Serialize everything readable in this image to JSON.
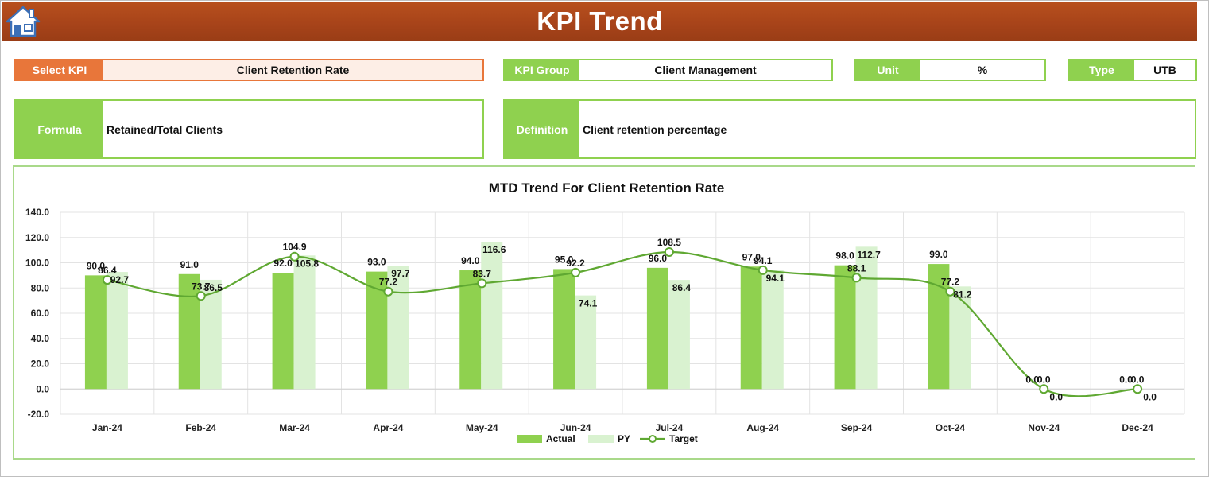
{
  "header": {
    "title": "KPI Trend",
    "home_icon": "home-icon"
  },
  "fields": {
    "select_kpi": {
      "label": "Select KPI",
      "value": "Client Retention Rate"
    },
    "kpi_group": {
      "label": "KPI Group",
      "value": "Client Management"
    },
    "unit": {
      "label": "Unit",
      "value": "%"
    },
    "type": {
      "label": "Type",
      "value": "UTB"
    },
    "formula": {
      "label": "Formula",
      "value": "Retained/Total Clients"
    },
    "definition": {
      "label": "Definition",
      "value": "Client retention percentage"
    }
  },
  "colors": {
    "header": "#a8441a",
    "accent_green": "#8fd14f",
    "select_orange": "#e8763a",
    "actual": "#8fd14f",
    "py": "#d9f2d0",
    "target": "#5fa832"
  },
  "chart_data": {
    "type": "bar",
    "title": "MTD Trend For Client Retention Rate",
    "categories": [
      "Jan-24",
      "Feb-24",
      "Mar-24",
      "Apr-24",
      "May-24",
      "Jun-24",
      "Jul-24",
      "Aug-24",
      "Sep-24",
      "Oct-24",
      "Nov-24",
      "Dec-24"
    ],
    "series": [
      {
        "name": "Actual",
        "type": "bar",
        "values": [
          90.0,
          91.0,
          92.0,
          93.0,
          94.0,
          95.0,
          96.0,
          97.0,
          98.0,
          99.0,
          0.0,
          0.0
        ]
      },
      {
        "name": "PY",
        "type": "bar",
        "values": [
          92.7,
          86.5,
          105.8,
          97.7,
          116.6,
          74.1,
          86.4,
          94.1,
          112.7,
          81.2,
          0.0,
          0.0
        ]
      },
      {
        "name": "Target",
        "type": "line",
        "values": [
          86.4,
          73.7,
          104.9,
          77.2,
          83.7,
          92.2,
          108.5,
          94.1,
          88.1,
          77.2,
          0.0,
          0.0
        ]
      }
    ],
    "yticks": [
      "140.0",
      "120.0",
      "100.0",
      "80.0",
      "60.0",
      "40.0",
      "20.0",
      "0.0",
      "-20.0"
    ],
    "ylim": [
      -20,
      140
    ],
    "grid": true,
    "legend": "bottom"
  }
}
